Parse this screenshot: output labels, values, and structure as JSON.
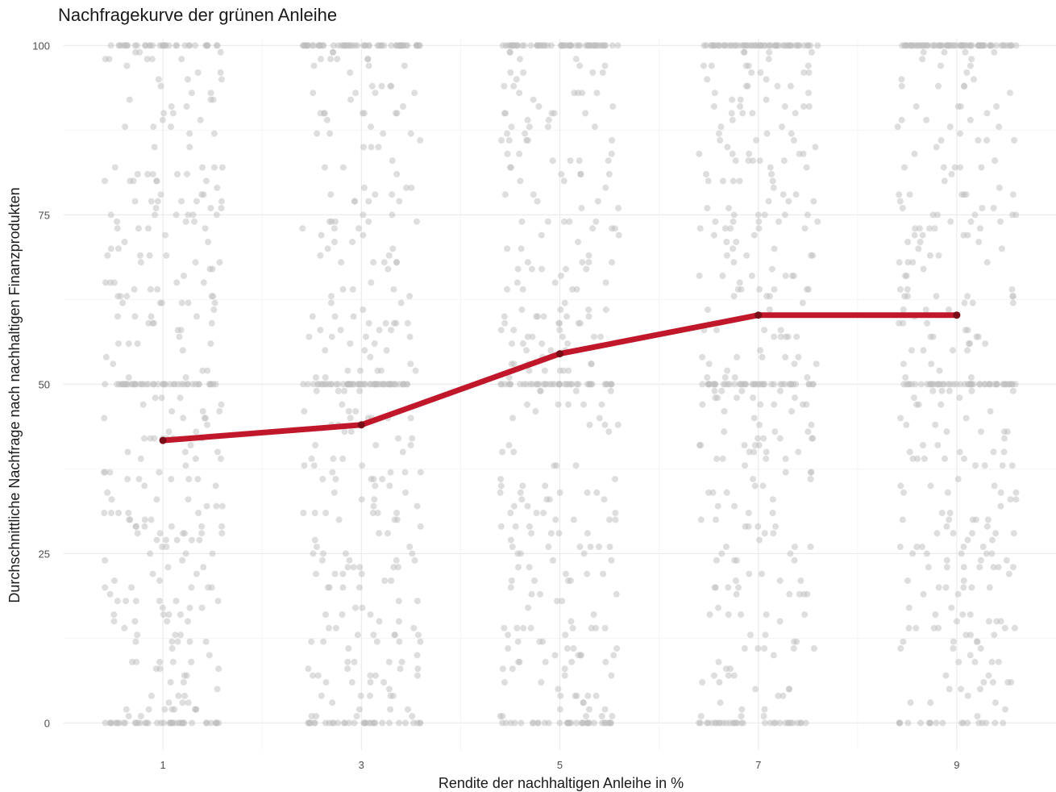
{
  "chart_data": {
    "type": "scatter",
    "title": "Nachfragekurve der grünen Anleihe",
    "xlabel": "Rendite der nachhaltigen Anleihe in %",
    "ylabel": "Durchschnittliche Nachfrage nach nachhaltigen Finanzprodukten",
    "x_ticks": [
      1,
      3,
      5,
      7,
      9
    ],
    "y_ticks": [
      0,
      25,
      50,
      75,
      100
    ],
    "xlim": [
      0,
      10
    ],
    "ylim": [
      -4,
      101
    ],
    "grid": true,
    "point_color": "#bdbdbd",
    "points_per_group": 400,
    "jitter_width": 0.6,
    "series": [
      {
        "type": "line",
        "color": "#c0182a",
        "x": [
          1,
          3,
          5,
          7,
          9
        ],
        "values": [
          41.7,
          44.0,
          54.5,
          60.2,
          60.2
        ]
      }
    ]
  }
}
